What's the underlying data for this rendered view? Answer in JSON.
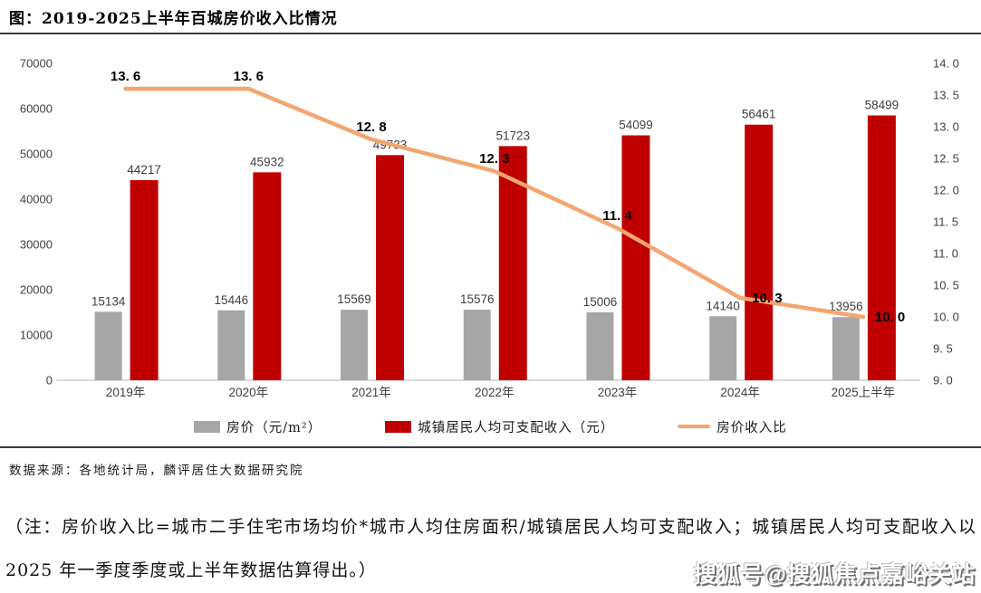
{
  "header": {
    "title": "图：2019-2025上半年百城房价收入比情况"
  },
  "chart_data": {
    "type": "bar",
    "subtype": "grouped-bar-with-line-overlay",
    "categories": [
      "2019年",
      "2020年",
      "2021年",
      "2022年",
      "2023年",
      "2024年",
      "2025上半年"
    ],
    "series": [
      {
        "name": "房价（元/m²）",
        "type": "bar",
        "axis": "left",
        "color": "#A6A6A6",
        "values": [
          15134,
          15446,
          15569,
          15576,
          15006,
          14140,
          13956
        ],
        "labels": [
          "15134",
          "15446",
          "15569",
          "15576",
          "15006",
          "14140",
          "13956"
        ]
      },
      {
        "name": "城镇居民人均可支配收入（元）",
        "type": "bar",
        "axis": "left",
        "color": "#C00000",
        "values": [
          44217,
          45932,
          49733,
          51723,
          54099,
          56461,
          58499
        ],
        "labels": [
          "44217",
          "45932",
          "49733",
          "51723",
          "54099",
          "56461",
          "58499"
        ]
      },
      {
        "name": "房价收入比",
        "type": "line",
        "axis": "right",
        "color": "#F2A670",
        "values": [
          13.6,
          13.6,
          12.8,
          12.3,
          11.4,
          10.3,
          10.0
        ],
        "labels": [
          "13. 6",
          "13. 6",
          "12. 8",
          "12. 3",
          "11. 4",
          "10. 3",
          "10. 0"
        ]
      }
    ],
    "left_axis": {
      "min": 0,
      "max": 70000,
      "step": 10000,
      "ticks": [
        "0",
        "10000",
        "20000",
        "30000",
        "40000",
        "50000",
        "60000",
        "70000"
      ]
    },
    "right_axis": {
      "min": 9.0,
      "max": 14.0,
      "step": 0.5,
      "ticks": [
        "9. 0",
        "9. 5",
        "10. 0",
        "10. 5",
        "11. 0",
        "11. 5",
        "12. 0",
        "12. 5",
        "13. 0",
        "13. 5",
        "14. 0"
      ]
    },
    "grid": false,
    "legend_position": "bottom",
    "colors": {
      "axis_line": "#D9D9D9",
      "tick_text": "#404040",
      "bar_label_text": "#404040",
      "line_label_text": "#000000"
    }
  },
  "footer": {
    "source": "数据来源：各地统计局，麟评居住大数据研究院",
    "note": "（注：房价收入比=城市二手住宅市场均价*城市人均住房面积/城镇居民人均可支配收入；城镇居民人均可支配收入以 2025 年一季度季度或上半年数据估算得出。）",
    "watermark": "搜狐号@搜狐焦点嘉峪关站"
  }
}
